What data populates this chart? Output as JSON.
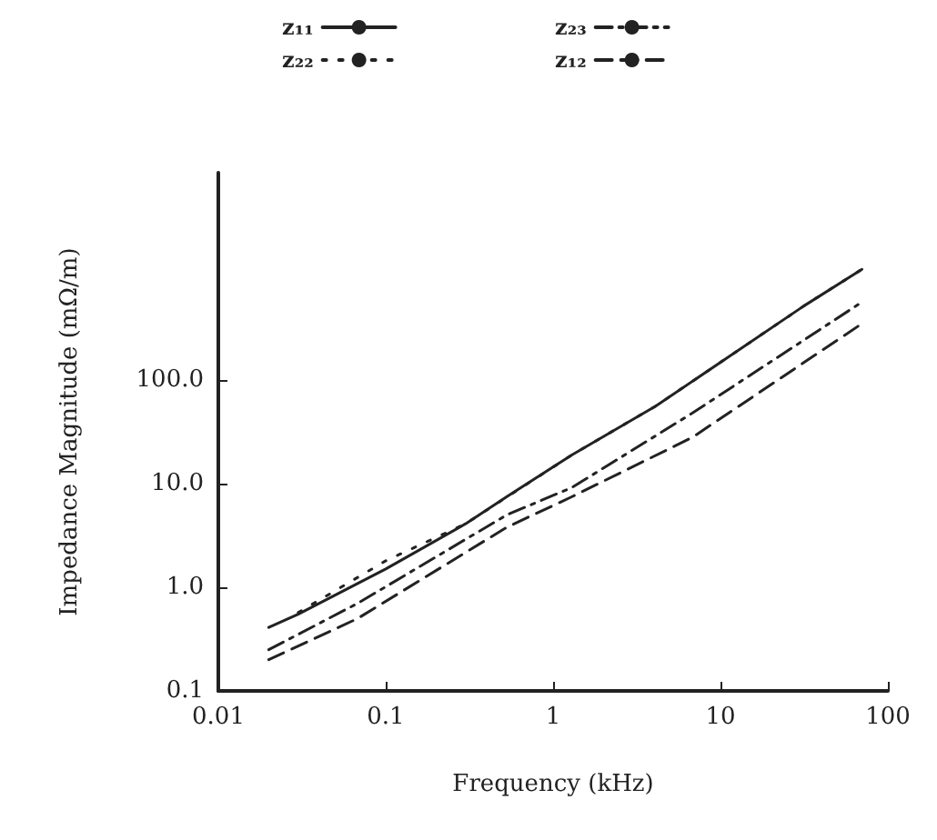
{
  "chart_data": {
    "type": "line",
    "xlabel": "Frequency (kHz)",
    "ylabel": "Impedance Magnitude (mΩ/m)",
    "log": "xy",
    "grid": false,
    "legend": "top",
    "marker": "none",
    "xlim": [
      0.01,
      100
    ],
    "xticks": [
      0.01,
      0.1,
      1,
      10,
      100
    ],
    "ylim": [
      0.1,
      10000
    ],
    "yticks": [
      {
        "value": 0.1,
        "label": "0.1"
      },
      {
        "value": 1,
        "label": "1.0"
      },
      {
        "value": 10,
        "label": "10.0"
      },
      {
        "value": 100,
        "label": "100.0"
      }
    ],
    "series": [
      {
        "name": "z₁₁",
        "color": "#222222",
        "line_style": "solid",
        "x": [
          0.02,
          0.03,
          0.1,
          0.3,
          0.53,
          1.3,
          4.1,
          31.6,
          70
        ],
        "values": [
          0.41,
          0.55,
          1.5,
          4.1,
          7.5,
          19,
          56,
          520,
          1170
        ]
      },
      {
        "name": "z₂₃",
        "color": "#222222",
        "line_style": "dashdot",
        "x": [
          0.02,
          0.068,
          0.53,
          1.3,
          6.8,
          70
        ],
        "values": [
          0.25,
          0.7,
          5.0,
          9.2,
          48,
          565
        ]
      },
      {
        "name": "z₂₂",
        "color": "#222222",
        "line_style": "dotted",
        "x": [
          0.03,
          0.1,
          0.3,
          1.3,
          4.1,
          31.6,
          70
        ],
        "values": [
          0.57,
          1.8,
          4.1,
          19,
          56,
          520,
          1170
        ]
      },
      {
        "name": "z₁₂",
        "color": "#222222",
        "line_style": "dashed",
        "x": [
          0.02,
          0.068,
          0.53,
          1.3,
          6.8,
          70
        ],
        "values": [
          0.2,
          0.5,
          3.8,
          7.5,
          28,
          350
        ]
      }
    ]
  }
}
